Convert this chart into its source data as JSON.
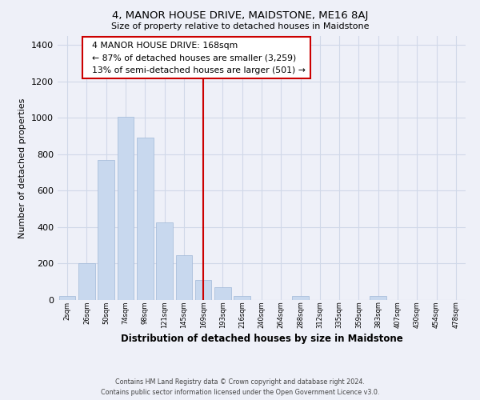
{
  "title": "4, MANOR HOUSE DRIVE, MAIDSTONE, ME16 8AJ",
  "subtitle": "Size of property relative to detached houses in Maidstone",
  "xlabel": "Distribution of detached houses by size in Maidstone",
  "ylabel": "Number of detached properties",
  "bar_labels": [
    "2sqm",
    "26sqm",
    "50sqm",
    "74sqm",
    "98sqm",
    "121sqm",
    "145sqm",
    "169sqm",
    "193sqm",
    "216sqm",
    "240sqm",
    "264sqm",
    "288sqm",
    "312sqm",
    "335sqm",
    "359sqm",
    "383sqm",
    "407sqm",
    "430sqm",
    "454sqm",
    "478sqm"
  ],
  "bar_values": [
    20,
    200,
    770,
    1005,
    890,
    425,
    245,
    110,
    70,
    20,
    0,
    0,
    20,
    0,
    0,
    0,
    20,
    0,
    0,
    0,
    0
  ],
  "bar_color": "#c8d8ee",
  "bar_edge_color": "#a0b8d8",
  "reference_line_x": 7,
  "reference_line_color": "#cc0000",
  "ylim": [
    0,
    1450
  ],
  "yticks": [
    0,
    200,
    400,
    600,
    800,
    1000,
    1200,
    1400
  ],
  "annotation_title": "4 MANOR HOUSE DRIVE: 168sqm",
  "annotation_line1": "← 87% of detached houses are smaller (3,259)",
  "annotation_line2": "13% of semi-detached houses are larger (501) →",
  "footer_line1": "Contains HM Land Registry data © Crown copyright and database right 2024.",
  "footer_line2": "Contains public sector information licensed under the Open Government Licence v3.0.",
  "background_color": "#eef0f8",
  "grid_color": "#d0d8e8"
}
